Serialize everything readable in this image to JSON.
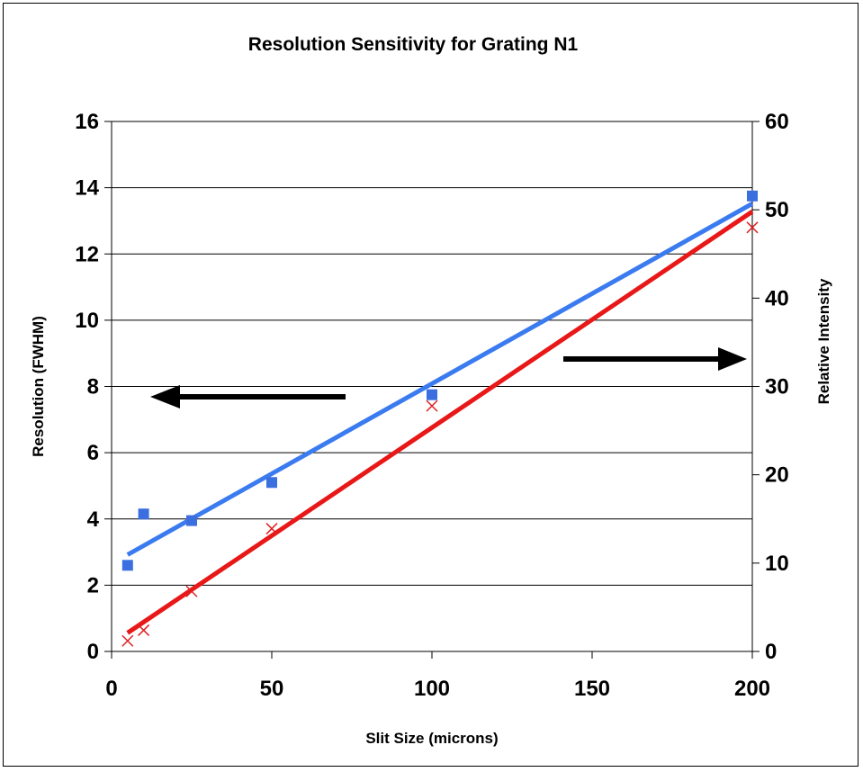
{
  "chart_data": {
    "type": "scatter",
    "title": "Resolution Sensitivity for Grating N1",
    "xlabel": "Slit Size (microns)",
    "ylabel_left": "Resolution (FWHM)",
    "ylabel_right": "Relative Intensity",
    "xlim": [
      0,
      200
    ],
    "ylim_left": [
      0,
      16
    ],
    "ylim_right": [
      0,
      60
    ],
    "x_ticks": [
      0,
      50,
      100,
      150,
      200
    ],
    "y_ticks_left": [
      0,
      2,
      4,
      6,
      8,
      10,
      12,
      14,
      16
    ],
    "y_ticks_right": [
      0,
      10,
      20,
      30,
      40,
      50,
      60
    ],
    "grid": true,
    "series": [
      {
        "axis": "left",
        "marker": "square",
        "color": "#3B6FE0",
        "x": [
          5,
          10,
          25,
          50,
          100,
          200
        ],
        "y": [
          2.6,
          4.15,
          3.95,
          5.1,
          7.75,
          13.75
        ]
      },
      {
        "axis": "right",
        "marker": "x",
        "color": "#E02020",
        "x": [
          5,
          10,
          25,
          50,
          100,
          200
        ],
        "y": [
          1.2,
          2.4,
          6.8,
          13.9,
          27.8,
          48.0
        ]
      }
    ],
    "trendlines": [
      {
        "axis": "left",
        "color": "#3B7BF0",
        "x": [
          5,
          200
        ],
        "y": [
          2.92,
          13.52
        ]
      },
      {
        "axis": "right",
        "color": "#E81818",
        "x": [
          5,
          200
        ],
        "y": [
          2.1,
          49.8
        ]
      }
    ],
    "annotations": [
      {
        "type": "arrow",
        "direction": "left",
        "meaning": "left axis"
      },
      {
        "type": "arrow",
        "direction": "right",
        "meaning": "right axis"
      }
    ]
  }
}
